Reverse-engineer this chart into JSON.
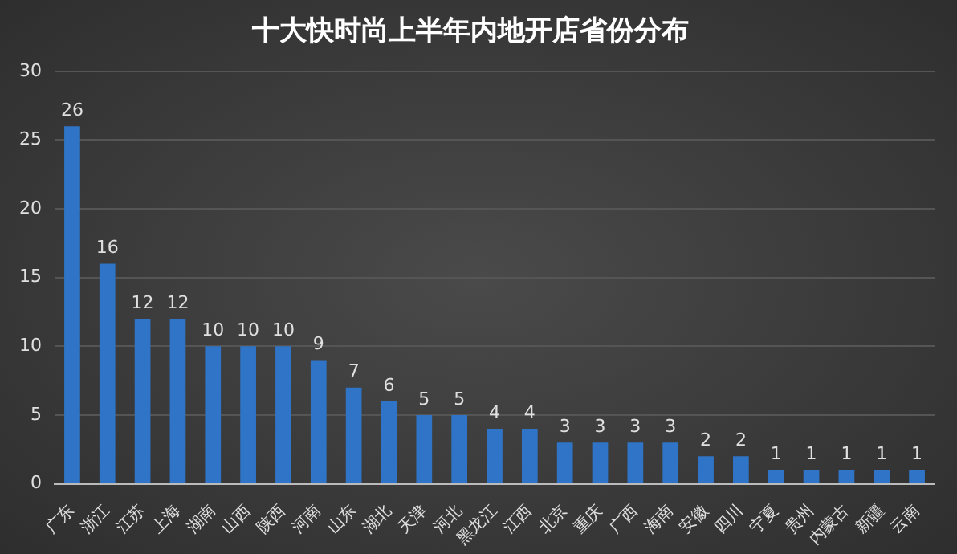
{
  "chart_data": {
    "type": "bar",
    "title": "十大快时尚上半年内地开店省份分布",
    "categories": [
      "广东",
      "浙江",
      "江苏",
      "上海",
      "湖南",
      "山西",
      "陕西",
      "河南",
      "山东",
      "湖北",
      "天津",
      "河北",
      "黑龙江",
      "江西",
      "北京",
      "重庆",
      "广西",
      "海南",
      "安徽",
      "四川",
      "宁夏",
      "贵州",
      "内蒙古",
      "新疆",
      "云南"
    ],
    "values": [
      26,
      16,
      12,
      12,
      10,
      10,
      10,
      9,
      7,
      6,
      5,
      5,
      4,
      4,
      3,
      3,
      3,
      3,
      2,
      2,
      1,
      1,
      1,
      1,
      1
    ],
    "color": "#2f74c6",
    "ylim": [
      0,
      30
    ],
    "yticks": [
      0,
      5,
      10,
      15,
      20,
      25,
      30
    ],
    "grid": "y",
    "data_labels": true,
    "legend": false
  }
}
